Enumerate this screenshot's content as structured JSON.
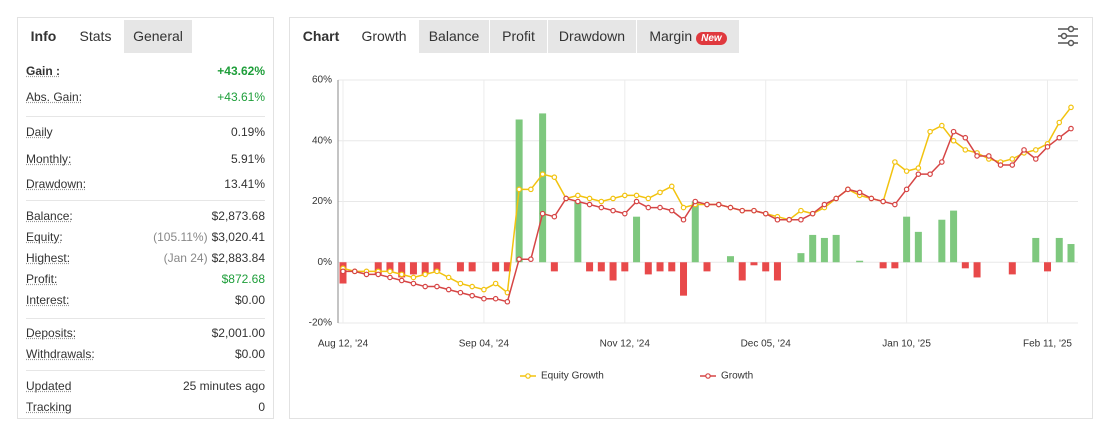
{
  "left_tabs": {
    "items": [
      "Info",
      "Stats",
      "General"
    ],
    "active": 1
  },
  "stats": {
    "groups": [
      {
        "rows": [
          {
            "label": "Gain :",
            "value": "+43.62%",
            "color": "#1e9e3a",
            "strong": true
          },
          {
            "label": "Abs. Gain:",
            "value": "+43.61%",
            "color": "#1e9e3a"
          }
        ]
      },
      {
        "rows": [
          {
            "label": "Daily",
            "value": "0.19%"
          },
          {
            "label": "Monthly:",
            "value": "5.91%"
          },
          {
            "label": "Drawdown:",
            "value": "13.41%"
          }
        ]
      },
      {
        "rows": [
          {
            "label": "Balance:",
            "value": "$2,873.68"
          },
          {
            "label": "Equity:",
            "note": "(105.11%)",
            "value": "$3,020.41"
          },
          {
            "label": "Highest:",
            "note": "(Jan 24)",
            "value": "$2,883.84"
          },
          {
            "label": "Profit:",
            "value": "$872.68",
            "color": "#1e9e3a"
          },
          {
            "label": "Interest:",
            "value": "$0.00"
          }
        ]
      },
      {
        "rows": [
          {
            "label": "Deposits:",
            "value": "$2,001.00"
          },
          {
            "label": "Withdrawals:",
            "value": "$0.00"
          }
        ]
      },
      {
        "rows": [
          {
            "label": "Updated",
            "value": "25 minutes ago"
          },
          {
            "label": "Tracking",
            "value": "0"
          }
        ]
      }
    ]
  },
  "right_tabs": {
    "items": [
      "Chart",
      "Growth",
      "Balance",
      "Profit",
      "Drawdown",
      "Margin"
    ],
    "active": 1,
    "badge": "New"
  },
  "chart_data": {
    "type": "line",
    "categories": [
      "Aug 12, '24",
      null,
      null,
      null,
      null,
      null,
      null,
      null,
      null,
      null,
      null,
      null,
      "Sep 04, '24",
      null,
      null,
      null,
      null,
      null,
      null,
      null,
      null,
      null,
      null,
      null,
      "Nov 12, '24",
      null,
      null,
      null,
      null,
      null,
      null,
      null,
      null,
      null,
      null,
      null,
      "Dec 05, '24",
      null,
      null,
      null,
      null,
      null,
      null,
      null,
      null,
      null,
      null,
      null,
      "Jan 10, '25",
      null,
      null,
      null,
      null,
      null,
      null,
      null,
      null,
      null,
      null,
      null,
      "Feb 11, '25",
      null,
      null
    ],
    "ylim": [
      -20,
      60
    ],
    "yticks": [
      {
        "value": -20,
        "label": "-20%"
      },
      {
        "value": 0,
        "label": "0%"
      },
      {
        "value": 20,
        "label": "20%"
      },
      {
        "value": 40,
        "label": "40%"
      },
      {
        "value": 60,
        "label": "60%"
      }
    ],
    "grid": true,
    "legend": "bottom",
    "series": [
      {
        "name": "Equity Growth",
        "type": "line",
        "color": "#f2c30f",
        "values": [
          -2,
          -3,
          -3,
          -3,
          -3,
          -4,
          -5,
          -4,
          -3,
          -5,
          -7,
          -8,
          -9,
          -7,
          -10,
          24,
          24,
          29,
          28,
          21,
          22,
          21,
          20,
          21,
          22,
          22,
          21,
          23,
          25,
          18,
          19,
          19,
          19,
          18,
          17,
          17,
          16,
          15,
          14,
          17,
          16,
          18,
          21,
          24,
          22,
          21,
          20,
          33,
          30,
          31,
          43,
          45,
          40,
          37,
          36,
          34,
          33,
          34,
          36,
          37,
          39,
          46,
          51
        ]
      },
      {
        "name": "Growth",
        "type": "line",
        "color": "#d64545",
        "values": [
          -3,
          -3,
          -4,
          -4,
          -5,
          -6,
          -7,
          -8,
          -8,
          -9,
          -10,
          -11,
          -12,
          -12,
          -13,
          1,
          1,
          16,
          15,
          21,
          20,
          19,
          18,
          17,
          16,
          20,
          18,
          18,
          17,
          14,
          20,
          19,
          19,
          18,
          17,
          17,
          16,
          14,
          14,
          14,
          16,
          19,
          21,
          24,
          23,
          21,
          20,
          19,
          24,
          29,
          29,
          33,
          43,
          41,
          35,
          35,
          32,
          32,
          37,
          34,
          38,
          41,
          44
        ]
      },
      {
        "type": "bar",
        "color_positive": "#7ec87e",
        "color_negative": "#e8494a",
        "values": [
          -7,
          null,
          null,
          -4,
          -3,
          -5,
          -4,
          -4,
          -3,
          null,
          -3,
          -3,
          null,
          -3,
          -3,
          47,
          null,
          49,
          -3,
          null,
          20,
          -3,
          -3,
          -6,
          -3,
          15,
          -4,
          -3,
          -3,
          -11,
          20,
          -3,
          null,
          2,
          -6,
          -1,
          -3,
          -6,
          null,
          3,
          9,
          8,
          9,
          null,
          0.5,
          null,
          -2,
          -2,
          15,
          10,
          null,
          14,
          17,
          -2,
          -5,
          null,
          null,
          -4,
          null,
          8,
          -3,
          8,
          6
        ]
      }
    ]
  }
}
